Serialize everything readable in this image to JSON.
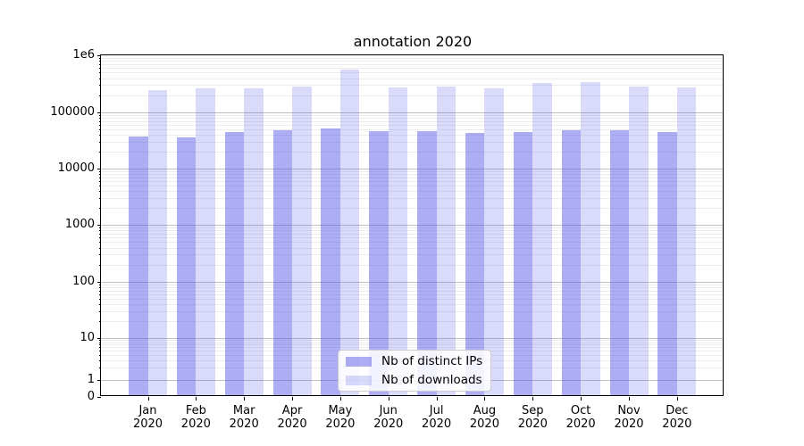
{
  "chart_data": {
    "type": "bar",
    "title": "annotation 2020",
    "yscale": "symlog",
    "ylim": [
      0,
      1000000
    ],
    "grid": {
      "horizontal_major": true,
      "horizontal_minor": true,
      "vertical": false
    },
    "legend_position": "lower center",
    "year": "2020",
    "categories": [
      "Jan",
      "Feb",
      "Mar",
      "Apr",
      "May",
      "Jun",
      "Jul",
      "Aug",
      "Sep",
      "Oct",
      "Nov",
      "Dec"
    ],
    "y_tick_labels": [
      "1e6",
      "100000",
      "10000",
      "1000",
      "100",
      "10",
      "1",
      "0"
    ],
    "series": [
      {
        "name": "Nb of distinct IPs",
        "color": "rgba(80,80,230,0.47)",
        "values": [
          37000,
          35800,
          44000,
          48500,
          50500,
          46500,
          46500,
          42500,
          44500,
          48000,
          48000,
          45000
        ]
      },
      {
        "name": "Nb of downloads",
        "color": "rgba(80,80,230,0.21)",
        "values": [
          248000,
          265000,
          267000,
          285000,
          557000,
          270000,
          283000,
          262000,
          330000,
          340000,
          283000,
          276000
        ]
      }
    ]
  }
}
